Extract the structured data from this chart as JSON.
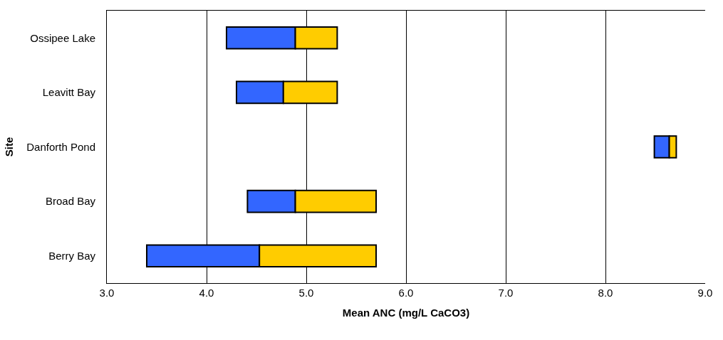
{
  "chart_data": {
    "type": "bar",
    "orientation": "horizontal",
    "xlabel": "Mean ANC (mg/L CaCO3)",
    "ylabel": "Site",
    "categories": [
      "Ossipee Lake",
      "Leavitt Bay",
      "Danforth Pond",
      "Broad Bay",
      "Berry Bay"
    ],
    "series": [
      {
        "color": "#3366ff",
        "base": [
          4.2,
          4.3,
          8.49,
          4.41,
          3.4
        ],
        "values": [
          0.69,
          0.47,
          0.15,
          0.48,
          1.13
        ]
      },
      {
        "color": "#ffcc00",
        "base": [
          4.89,
          4.77,
          8.64,
          4.89,
          4.53
        ],
        "values": [
          0.42,
          0.54,
          0.07,
          0.81,
          1.17
        ]
      }
    ],
    "xlim": [
      3.0,
      9.0
    ],
    "xticks": [
      {
        "value": 3,
        "label": "3.0"
      },
      {
        "value": 4,
        "label": "4.0"
      },
      {
        "value": 5,
        "label": "5.0"
      },
      {
        "value": 6,
        "label": "6.0"
      },
      {
        "value": 7,
        "label": "7.0"
      },
      {
        "value": 8,
        "label": "8.0"
      },
      {
        "value": 9,
        "label": "9.0"
      }
    ],
    "grid": "x"
  }
}
